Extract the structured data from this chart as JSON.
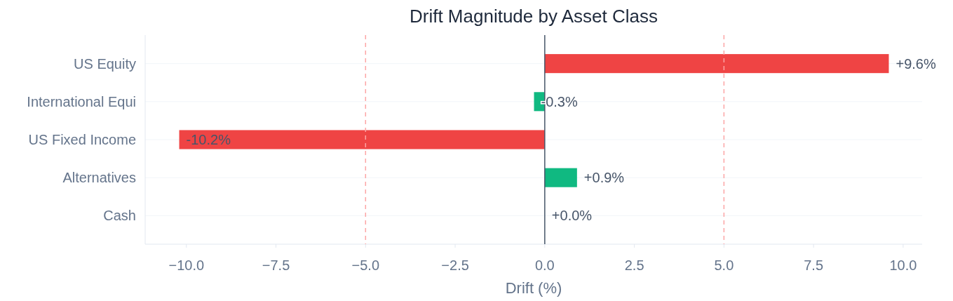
{
  "chart_data": {
    "type": "bar",
    "orientation": "horizontal",
    "title": "Drift Magnitude by Asset Class",
    "xlabel": "Drift (%)",
    "categories": [
      "US Equity",
      "International Equi",
      "US Fixed Income",
      "Alternatives",
      "Cash"
    ],
    "values": [
      9.6,
      -0.3,
      -10.2,
      0.9,
      0.0
    ],
    "colors": [
      "#ef4444",
      "#10b981",
      "#ef4444",
      "#10b981",
      "#10b981"
    ],
    "value_labels": [
      "+9.6%",
      "-0.3%",
      "-10.2%",
      "+0.9%",
      "+0.0%"
    ],
    "xlim": [
      -11.15,
      10.53
    ],
    "xticks": [
      {
        "value": -10,
        "label": "−10.0"
      },
      {
        "value": -7.5,
        "label": "−7.5"
      },
      {
        "value": -5,
        "label": "−5.0"
      },
      {
        "value": -2.5,
        "label": "−2.5"
      },
      {
        "value": 0,
        "label": "0.0"
      },
      {
        "value": 2.5,
        "label": "2.5"
      },
      {
        "value": 5,
        "label": "5.0"
      },
      {
        "value": 7.5,
        "label": "7.5"
      },
      {
        "value": 10,
        "label": "10.0"
      }
    ],
    "ref_lines": [
      {
        "axis": "x",
        "value": -5,
        "color": "#fca5a5",
        "line_style": "dashed"
      },
      {
        "axis": "x",
        "value": 5,
        "color": "#fca5a5",
        "line_style": "dashed"
      },
      {
        "axis": "x",
        "value": 0,
        "color": "#475569",
        "line_style": "solid"
      }
    ],
    "grid": "y"
  }
}
